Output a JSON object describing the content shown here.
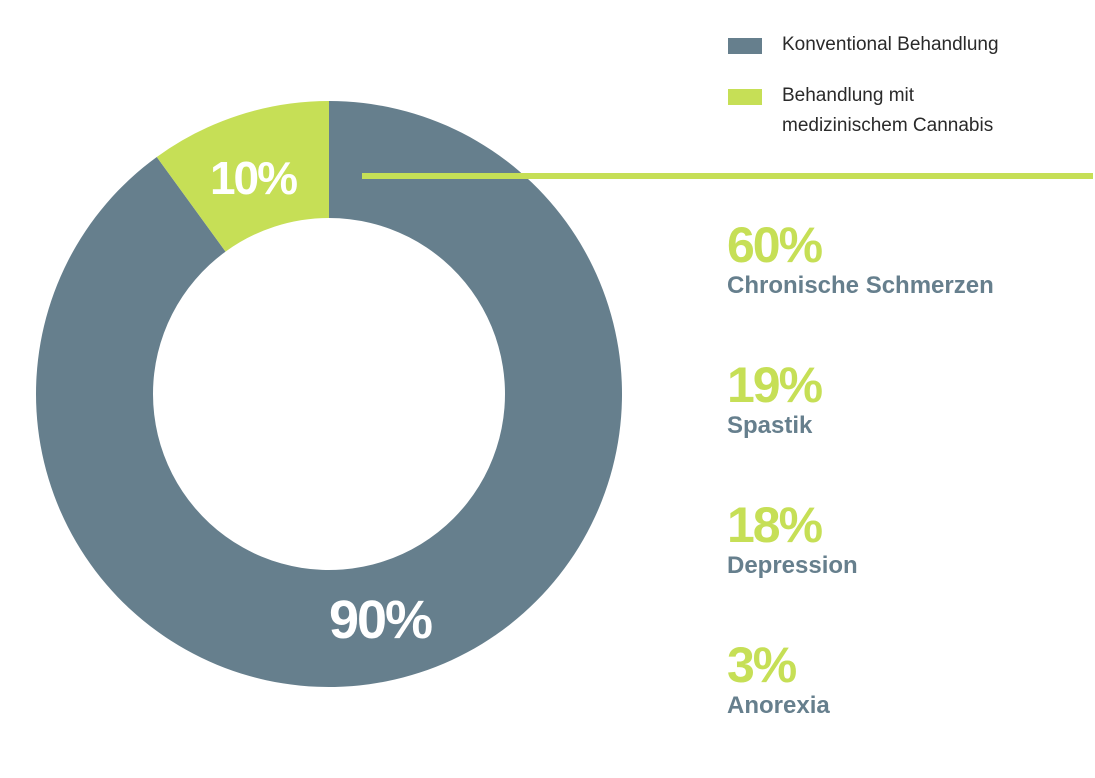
{
  "colors": {
    "conventional": "#667f8d",
    "cannabis": "#c6df56",
    "slice_label": "#ffffff"
  },
  "legend": {
    "items": [
      {
        "label": "Konventional Behandlung",
        "color": "#667f8d"
      },
      {
        "label": "Behandlung mit\nmedizinischem Cannabis",
        "color": "#c6df56"
      }
    ]
  },
  "chart_data": {
    "type": "pie",
    "donut": true,
    "categories": [
      "Konventional Behandlung",
      "Behandlung mit medizinischem Cannabis"
    ],
    "values": [
      90,
      10
    ],
    "value_labels": [
      "90%",
      "10%"
    ],
    "colors": [
      "#667f8d",
      "#c6df56"
    ],
    "legend_position": "top-right",
    "title": "",
    "breakdown": {
      "applies_to": "Behandlung mit medizinischem Cannabis",
      "items": [
        {
          "percent_label": "60%",
          "value": 60,
          "label": "Chronische Schmerzen"
        },
        {
          "percent_label": "19%",
          "value": 19,
          "label": "Spastik"
        },
        {
          "percent_label": "18%",
          "value": 18,
          "label": "Depression"
        },
        {
          "percent_label": "3%",
          "value": 3,
          "label": "Anorexia"
        }
      ]
    }
  }
}
